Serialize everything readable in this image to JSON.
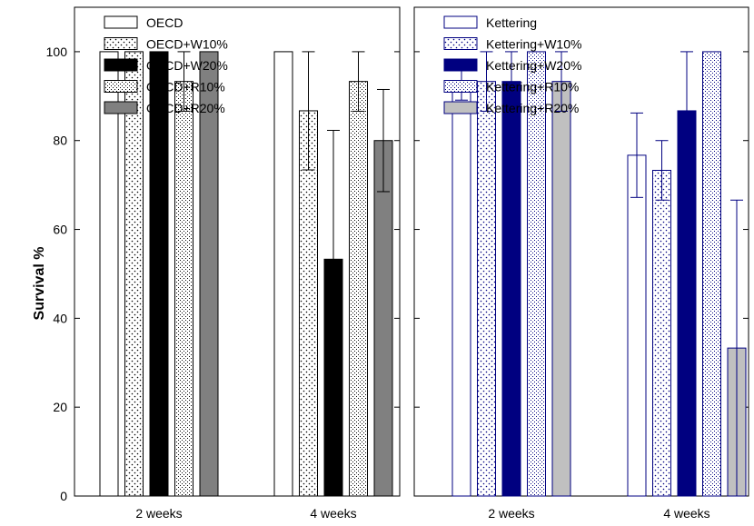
{
  "chart_data": [
    {
      "type": "bar",
      "title": "",
      "xlabel": "",
      "ylabel": "Survival %",
      "ylim": [
        0,
        110
      ],
      "yticks": [
        0,
        20,
        40,
        60,
        80,
        100
      ],
      "categories": [
        "2 weeks",
        "4 weeks"
      ],
      "legend_position": "top-left",
      "series": [
        {
          "name": "OECD",
          "values": [
            100,
            100
          ],
          "error": [
            null,
            null
          ],
          "fill": "white",
          "stroke": "#000000"
        },
        {
          "name": "OECD+W10%",
          "values": [
            100,
            86.7
          ],
          "error": [
            null,
            13.3
          ],
          "fill": "dotted",
          "stroke": "#000000"
        },
        {
          "name": "OECD+W20%",
          "values": [
            100,
            53.3
          ],
          "error": [
            null,
            29
          ],
          "fill": "#000000",
          "stroke": "#000000"
        },
        {
          "name": "OECD+R10%",
          "values": [
            93.3,
            93.3
          ],
          "error": [
            6.7,
            6.7
          ],
          "fill": "stippled",
          "stroke": "#000000"
        },
        {
          "name": "OECD+R20%",
          "values": [
            100,
            80
          ],
          "error": [
            null,
            11.5
          ],
          "fill": "#808080",
          "stroke": "#000000"
        }
      ]
    },
    {
      "type": "bar",
      "title": "",
      "xlabel": "",
      "ylabel": "",
      "ylim": [
        0,
        110
      ],
      "yticks": [
        0,
        20,
        40,
        60,
        80,
        100
      ],
      "categories": [
        "2 weeks",
        "4 weeks"
      ],
      "legend_position": "top-left",
      "series": [
        {
          "name": "Kettering",
          "values": [
            93.3,
            76.7
          ],
          "error": [
            4.2,
            9.5
          ],
          "fill": "white",
          "stroke": "#000080"
        },
        {
          "name": "Kettering+W10%",
          "values": [
            93.3,
            73.3
          ],
          "error": [
            6.7,
            6.7
          ],
          "fill": "dotted",
          "stroke": "#000080"
        },
        {
          "name": "Kettering+W20%",
          "values": [
            93.3,
            86.7
          ],
          "error": [
            6.7,
            13.3
          ],
          "fill": "#000080",
          "stroke": "#000080"
        },
        {
          "name": "Kettering+R10%",
          "values": [
            100,
            100
          ],
          "error": [
            null,
            null
          ],
          "fill": "stippled",
          "stroke": "#000080"
        },
        {
          "name": "Kettering+R20%",
          "values": [
            93.3,
            33.3
          ],
          "error": [
            6.7,
            33.3
          ],
          "fill": "#c0c0c0",
          "stroke": "#000080"
        }
      ]
    }
  ]
}
